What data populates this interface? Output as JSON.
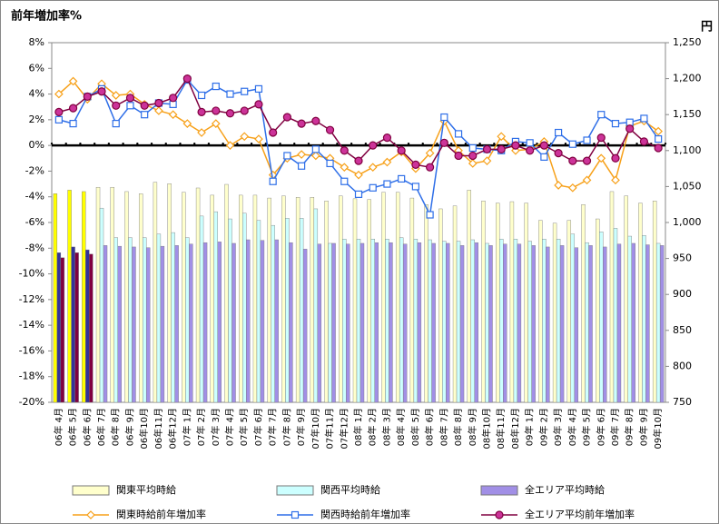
{
  "chart_data": {
    "type": "bar-line",
    "title": "前年増加率%",
    "y2_label": "円",
    "categories": [
      "06年 4月",
      "06年 5月",
      "06年 6月",
      "06年 7月",
      "06年 8月",
      "06年 9月",
      "06年10月",
      "06年11月",
      "06年12月",
      "07年 1月",
      "07年 2月",
      "07年 3月",
      "07年 4月",
      "07年 5月",
      "07年 6月",
      "07年 7月",
      "07年 8月",
      "07年 9月",
      "07年10月",
      "07年11月",
      "07年12月",
      "08年 1月",
      "08年 2月",
      "08年 3月",
      "08年 4月",
      "08年 5月",
      "08年 6月",
      "08年 7月",
      "08年 8月",
      "08年 9月",
      "08年10月",
      "08年11月",
      "08年12月",
      "09年 1月",
      "09年 2月",
      "09年 3月",
      "09年 4月",
      "09年 5月",
      "09年 6月",
      "09年 7月",
      "09年 8月",
      "09年 9月",
      "09年10月"
    ],
    "ylim": [
      -20,
      8
    ],
    "yticks": [
      {
        "value": -20,
        "label": "-20%"
      },
      {
        "value": -18,
        "label": "-18%"
      },
      {
        "value": -16,
        "label": "-16%"
      },
      {
        "value": -14,
        "label": "-14%"
      },
      {
        "value": -12,
        "label": "-12%"
      },
      {
        "value": -10,
        "label": "-10%"
      },
      {
        "value": -8,
        "label": "-8%"
      },
      {
        "value": -6,
        "label": "-6%"
      },
      {
        "value": -4,
        "label": "-4%"
      },
      {
        "value": -2,
        "label": "-2%"
      },
      {
        "value": 0,
        "label": "0%"
      },
      {
        "value": 2,
        "label": "2%"
      },
      {
        "value": 4,
        "label": "4%"
      },
      {
        "value": 6,
        "label": "6%"
      },
      {
        "value": 8,
        "label": "8%"
      }
    ],
    "y2lim": [
      750,
      1250
    ],
    "y2ticks": [
      750,
      800,
      850,
      900,
      950,
      {
        "value": 1000,
        "label": "1,000"
      },
      {
        "value": 1050,
        "label": "1,050"
      },
      {
        "value": 1100,
        "label": "1,100"
      },
      {
        "value": 1150,
        "label": "1,150"
      },
      {
        "value": 1200,
        "label": "1,200"
      },
      {
        "value": 1250,
        "label": "1,250"
      }
    ],
    "series": [
      {
        "name": "関東平均時給",
        "kind": "bar",
        "axis": "y2",
        "color": "#ffffcc",
        "colors": [
          "#ffff00",
          "#ffff00",
          "#ffff00",
          "#ffffcc",
          "#ffffcc",
          "#ffffcc",
          "#ffffcc",
          "#ffffcc",
          "#ffffcc",
          "#ffffcc",
          "#ffffcc",
          "#ffffcc",
          "#ffffcc",
          "#ffffcc",
          "#ffffcc",
          "#ffffcc",
          "#ffffcc",
          "#ffffcc",
          "#ffffcc",
          "#ffffcc",
          "#ffffcc",
          "#ffffcc",
          "#ffffcc",
          "#ffffcc",
          "#ffffcc",
          "#ffffcc",
          "#ffffcc",
          "#ffffcc",
          "#ffffcc",
          "#ffffcc",
          "#ffffcc",
          "#ffffcc",
          "#ffffcc",
          "#ffffcc",
          "#ffffcc",
          "#ffffcc",
          "#ffffcc",
          "#ffffcc",
          "#ffffcc",
          "#ffffcc",
          "#ffffcc",
          "#ffffcc",
          "#ffffcc"
        ],
        "values": [
          1040,
          1045,
          1043,
          1049,
          1049,
          1043,
          1040,
          1056,
          1054,
          1042,
          1048,
          1038,
          1053,
          1038,
          1038,
          1034,
          1037,
          1035,
          1035,
          1030,
          1037,
          1033,
          1032,
          1042,
          1042,
          1034,
          1025,
          1019,
          1023,
          1045,
          1030,
          1027,
          1029,
          1027,
          1003,
          999,
          1003,
          1025,
          1005,
          1043,
          1037,
          1027,
          1030
        ]
      },
      {
        "name": "関西平均時給",
        "kind": "bar",
        "axis": "y2",
        "color": "#ccffff",
        "colors": [
          "#333399",
          "#333399",
          "#333399",
          "#ccffff",
          "#ccffff",
          "#ccffff",
          "#ccffff",
          "#ccffff",
          "#ccffff",
          "#ccffff",
          "#ccffff",
          "#ccffff",
          "#ccffff",
          "#ccffff",
          "#ccffff",
          "#ccffff",
          "#ccffff",
          "#ccffff",
          "#ccffff",
          "#ccffff",
          "#ccffff",
          "#ccffff",
          "#ccffff",
          "#ccffff",
          "#ccffff",
          "#ccffff",
          "#ccffff",
          "#ccffff",
          "#ccffff",
          "#ccffff",
          "#ccffff",
          "#ccffff",
          "#ccffff",
          "#ccffff",
          "#ccffff",
          "#ccffff",
          "#ccffff",
          "#ccffff",
          "#ccffff",
          "#ccffff",
          "#ccffff",
          "#ccffff",
          "#ccffff"
        ],
        "values": [
          958,
          966,
          962,
          1020,
          979,
          979,
          979,
          984,
          986,
          979,
          1009,
          1015,
          1005,
          1013,
          1003,
          996,
          1006,
          1006,
          1019,
          971,
          977,
          977,
          977,
          977,
          979,
          977,
          976,
          974,
          974,
          976,
          971,
          977,
          977,
          974,
          977,
          977,
          984,
          972,
          987,
          992,
          981,
          982,
          971
        ]
      },
      {
        "name": "全エリア平均時給",
        "kind": "bar",
        "axis": "y2",
        "color": "#a18fe6",
        "colors": [
          "#800040",
          "#800040",
          "#800040",
          "#a18fe6",
          "#a18fe6",
          "#a18fe6",
          "#a18fe6",
          "#a18fe6",
          "#a18fe6",
          "#a18fe6",
          "#a18fe6",
          "#a18fe6",
          "#a18fe6",
          "#a18fe6",
          "#a18fe6",
          "#a18fe6",
          "#a18fe6",
          "#a18fe6",
          "#a18fe6",
          "#a18fe6",
          "#a18fe6",
          "#a18fe6",
          "#a18fe6",
          "#a18fe6",
          "#a18fe6",
          "#a18fe6",
          "#a18fe6",
          "#a18fe6",
          "#a18fe6",
          "#a18fe6",
          "#a18fe6",
          "#a18fe6",
          "#a18fe6",
          "#a18fe6",
          "#a18fe6",
          "#a18fe6",
          "#a18fe6",
          "#a18fe6",
          "#a18fe6",
          "#a18fe6",
          "#a18fe6",
          "#a18fe6",
          "#a18fe6"
        ],
        "values": [
          951,
          958,
          956,
          968,
          967,
          966,
          965,
          967,
          968,
          970,
          972,
          973,
          971,
          976,
          975,
          976,
          972,
          963,
          970,
          971,
          970,
          971,
          972,
          972,
          970,
          972,
          971,
          971,
          968,
          972,
          968,
          970,
          970,
          968,
          966,
          968,
          965,
          968,
          966,
          970,
          971,
          969,
          968
        ]
      },
      {
        "name": "関東時給前年増加率",
        "kind": "line",
        "marker": "diamond",
        "color": "#f7a11a",
        "values": [
          4.0,
          5.0,
          3.6,
          4.8,
          3.9,
          4.0,
          3.2,
          2.7,
          2.4,
          1.7,
          1.0,
          1.7,
          0.0,
          0.7,
          0.5,
          -2.3,
          -1.0,
          -0.7,
          -0.8,
          -1.0,
          -1.7,
          -2.3,
          -1.7,
          -1.3,
          -0.5,
          -1.8,
          -0.6,
          1.9,
          -0.4,
          -1.4,
          -1.2,
          0.7,
          -0.4,
          -0.3,
          0.3,
          -3.1,
          -3.3,
          -2.7,
          -1.0,
          -2.7,
          1.5,
          1.9,
          1.1
        ]
      },
      {
        "name": "関西時給前年増加率",
        "kind": "line",
        "marker": "square",
        "color": "#2f6fe8",
        "values": [
          2.0,
          1.7,
          3.8,
          4.4,
          1.7,
          3.1,
          2.4,
          3.3,
          3.2,
          5.1,
          3.9,
          4.6,
          4.0,
          4.2,
          4.4,
          -2.8,
          -0.8,
          -1.6,
          -0.3,
          -1.4,
          -2.8,
          -3.8,
          -3.3,
          -3.0,
          -2.6,
          -3.2,
          -5.4,
          2.2,
          0.9,
          -0.2,
          -0.3,
          -0.4,
          0.3,
          0.2,
          -0.9,
          1.0,
          0.1,
          0.4,
          2.4,
          1.7,
          1.8,
          2.1,
          0.5
        ]
      },
      {
        "name": "全エリア平均前年増加率",
        "kind": "line",
        "marker": "circle",
        "color": "#800040",
        "values": [
          2.6,
          2.9,
          3.8,
          4.2,
          3.1,
          3.7,
          3.1,
          3.3,
          3.7,
          5.2,
          2.6,
          2.7,
          2.5,
          2.7,
          3.2,
          1.0,
          2.2,
          1.7,
          1.9,
          1.2,
          -0.4,
          -1.2,
          0.0,
          0.6,
          -0.4,
          -1.5,
          -1.7,
          0.2,
          -0.8,
          -0.8,
          -0.3,
          -0.3,
          0.0,
          -0.4,
          0.0,
          -0.6,
          -1.2,
          -1.2,
          0.6,
          -1.0,
          1.3,
          0.3,
          -0.2
        ]
      }
    ]
  }
}
